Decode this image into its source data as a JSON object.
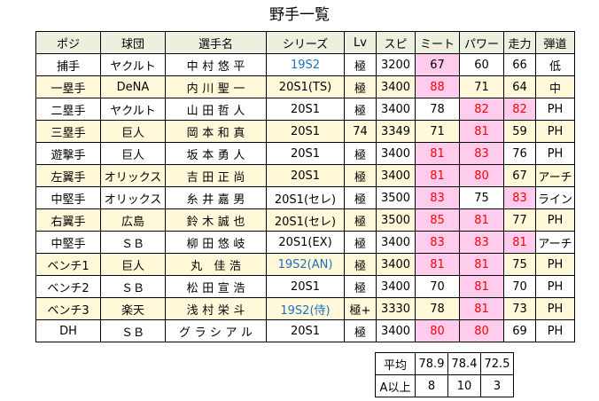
{
  "title": "野手一覧",
  "headers": [
    "ポジ",
    "球団",
    "選手名",
    "シリーズ",
    "Lv",
    "スピ",
    "ミート",
    "パワー",
    "走力",
    "弾道"
  ],
  "rows": [
    {
      "pos": "捕手",
      "team": "ヤクルト",
      "name": "中村悠平",
      "series": "19S2",
      "lv": "極",
      "spi": "3200",
      "meet": "67",
      "power": "60",
      "speed": "66",
      "traj": "低"
    },
    {
      "pos": "一塁手",
      "team": "DeNA",
      "name": "内川聖一",
      "series": "20S1(TS)",
      "lv": "極",
      "spi": "3400",
      "meet": "88",
      "power": "71",
      "speed": "64",
      "traj": "中"
    },
    {
      "pos": "二塁手",
      "team": "ヤクルト",
      "name": "山田哲人",
      "series": "20S1",
      "lv": "極",
      "spi": "3400",
      "meet": "78",
      "power": "82",
      "speed": "82",
      "traj": "PH"
    },
    {
      "pos": "三塁手",
      "team": "巨人",
      "name": "岡本和真",
      "series": "20S1",
      "lv": "74",
      "spi": "3349",
      "meet": "71",
      "power": "81",
      "speed": "59",
      "traj": "PH"
    },
    {
      "pos": "遊撃手",
      "team": "巨人",
      "name": "坂本勇人",
      "series": "20S1",
      "lv": "極",
      "spi": "3400",
      "meet": "81",
      "power": "83",
      "speed": "76",
      "traj": "PH"
    },
    {
      "pos": "左翼手",
      "team": "オリックス",
      "name": "吉田正尚",
      "series": "20S1",
      "lv": "極",
      "spi": "3400",
      "meet": "81",
      "power": "80",
      "speed": "67",
      "traj": "アーチ"
    },
    {
      "pos": "中堅手",
      "team": "オリックス",
      "name": "糸井嘉男",
      "series": "20S1(セレ)",
      "lv": "極",
      "spi": "3500",
      "meet": "83",
      "power": "75",
      "speed": "83",
      "traj": "ライン"
    },
    {
      "pos": "右翼手",
      "team": "広島",
      "name": "鈴木誠也",
      "series": "20S1(セレ)",
      "lv": "極",
      "spi": "3500",
      "meet": "85",
      "power": "81",
      "speed": "77",
      "traj": "PH"
    },
    {
      "pos": "中堅手",
      "team": "ＳＢ",
      "name": "柳田悠岐",
      "series": "20S1(EX)",
      "lv": "極",
      "spi": "3400",
      "meet": "83",
      "power": "83",
      "speed": "81",
      "traj": "アーチ"
    },
    {
      "pos": "ベンチ1",
      "team": "巨人",
      "name": "丸 佳浩",
      "series": "19S2(AN)",
      "lv": "極",
      "spi": "3400",
      "meet": "81",
      "power": "81",
      "speed": "75",
      "traj": "PH"
    },
    {
      "pos": "ベンチ2",
      "team": "ＳＢ",
      "name": "松田宣浩",
      "series": "20S1",
      "lv": "極",
      "spi": "3400",
      "meet": "70",
      "power": "81",
      "speed": "70",
      "traj": "PH"
    },
    {
      "pos": "ベンチ3",
      "team": "楽天",
      "name": "浅村栄斗",
      "series": "19S2(侍)",
      "lv": "極+",
      "spi": "3330",
      "meet": "78",
      "power": "81",
      "speed": "73",
      "traj": "PH"
    },
    {
      "pos": "DH",
      "team": "ＳＢ",
      "name": "グラシアル",
      "series": "20S1",
      "lv": "極",
      "spi": "3400",
      "meet": "80",
      "power": "80",
      "speed": "69",
      "traj": "PH"
    }
  ],
  "stats": [
    {
      "label": "平均",
      "meet": "78.9",
      "power": "78.4",
      "speed": "72.5"
    },
    {
      "label": "A以上",
      "meet": "8",
      "power": "10",
      "speed": "3"
    }
  ],
  "colors": {
    "header_bg": "#ebf1de",
    "alt_row_bg": "#fff9d9",
    "highlight_bg": "#ffcced",
    "high_value_text": "#ff0000",
    "special_series_text": "#1f6fbf"
  }
}
